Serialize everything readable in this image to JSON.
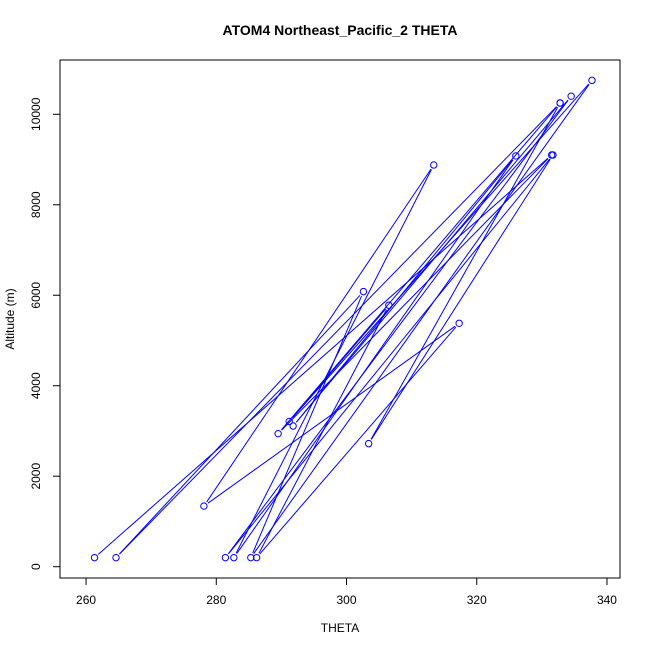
{
  "chart_data": {
    "type": "line",
    "title": "ATOM4 Northeast_Pacific_2 THETA",
    "xlabel": "THETA",
    "ylabel": "Altitude (m)",
    "xlim": [
      256,
      342
    ],
    "ylim": [
      -250,
      11200
    ],
    "xticks": [
      260,
      280,
      300,
      320,
      340
    ],
    "yticks": [
      0,
      2000,
      4000,
      6000,
      8000,
      10000
    ],
    "grid": false,
    "colors": {
      "series": "#0000ff",
      "axis": "#000000"
    },
    "series": [
      {
        "markers": "open-circle",
        "x": [
          261.3,
          331.5,
          289.5,
          332.8,
          264.6,
          302.6,
          285.3,
          337.7,
          291.2,
          306.5,
          286.2,
          317.3,
          278.1,
          313.4,
          282.7,
          326.0,
          291.8,
          334.5,
          281.4,
          331.7,
          303.4,
          332.8
        ],
        "y": [
          200,
          9100,
          2940,
          10250,
          200,
          6080,
          200,
          10750,
          3210,
          5780,
          200,
          5380,
          1340,
          8880,
          200,
          9080,
          3110,
          10400,
          200,
          9100,
          2720,
          10250
        ]
      }
    ]
  }
}
